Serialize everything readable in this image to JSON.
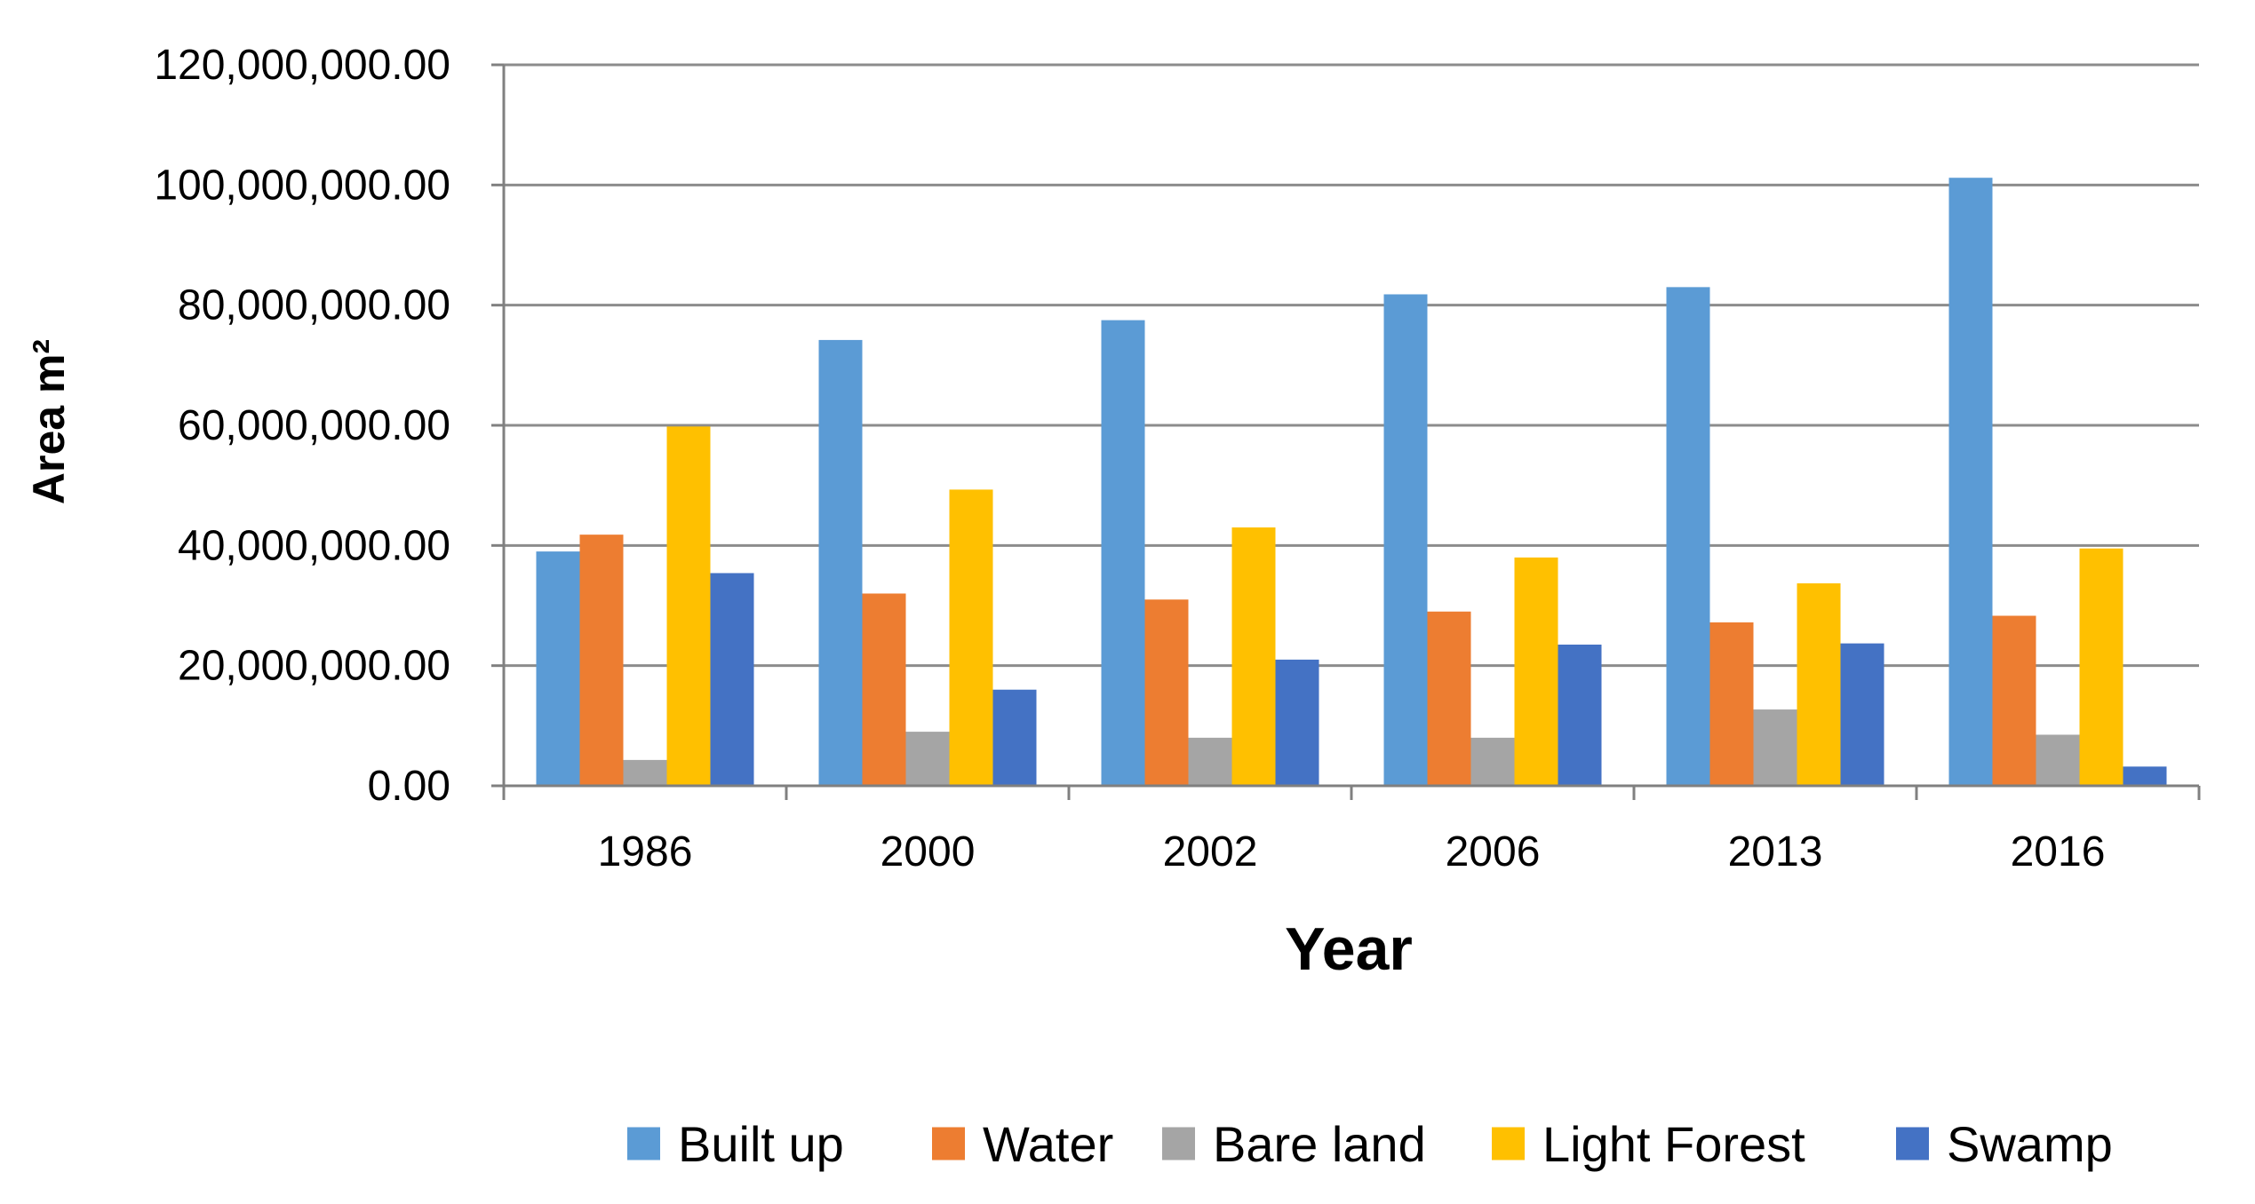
{
  "chart_data": {
    "type": "bar",
    "title": "",
    "xlabel": "Year",
    "ylabel": "Area m²",
    "ylim": [
      0,
      120000000
    ],
    "ytick_step": 20000000,
    "grid": true,
    "legend_position": "bottom",
    "categories": [
      "1986",
      "2000",
      "2002",
      "2006",
      "2013",
      "2016"
    ],
    "yticks": [
      "0.00",
      "20,000,000.00",
      "40,000,000.00",
      "60,000,000.00",
      "80,000,000.00",
      "100,000,000.00",
      "120,000,000.00"
    ],
    "series": [
      {
        "name": "Built up",
        "color": "#5B9BD5",
        "values": [
          39000000,
          74200000,
          77500000,
          81800000,
          83000000,
          101200000
        ]
      },
      {
        "name": "Water",
        "color": "#ED7D31",
        "values": [
          41800000,
          32000000,
          31000000,
          29000000,
          27200000,
          28300000
        ]
      },
      {
        "name": "Bare land",
        "color": "#A5A5A5",
        "values": [
          4300000,
          9000000,
          8000000,
          8000000,
          12700000,
          8500000
        ]
      },
      {
        "name": "Light Forest",
        "color": "#FFC000",
        "values": [
          59800000,
          49300000,
          43000000,
          38000000,
          33700000,
          39500000
        ]
      },
      {
        "name": "Swamp",
        "color": "#4472C4",
        "values": [
          35400000,
          16000000,
          21000000,
          23500000,
          23700000,
          3200000
        ]
      }
    ]
  },
  "style": {
    "grid_color": "#8C8C8C",
    "axis_color": "#808080"
  }
}
